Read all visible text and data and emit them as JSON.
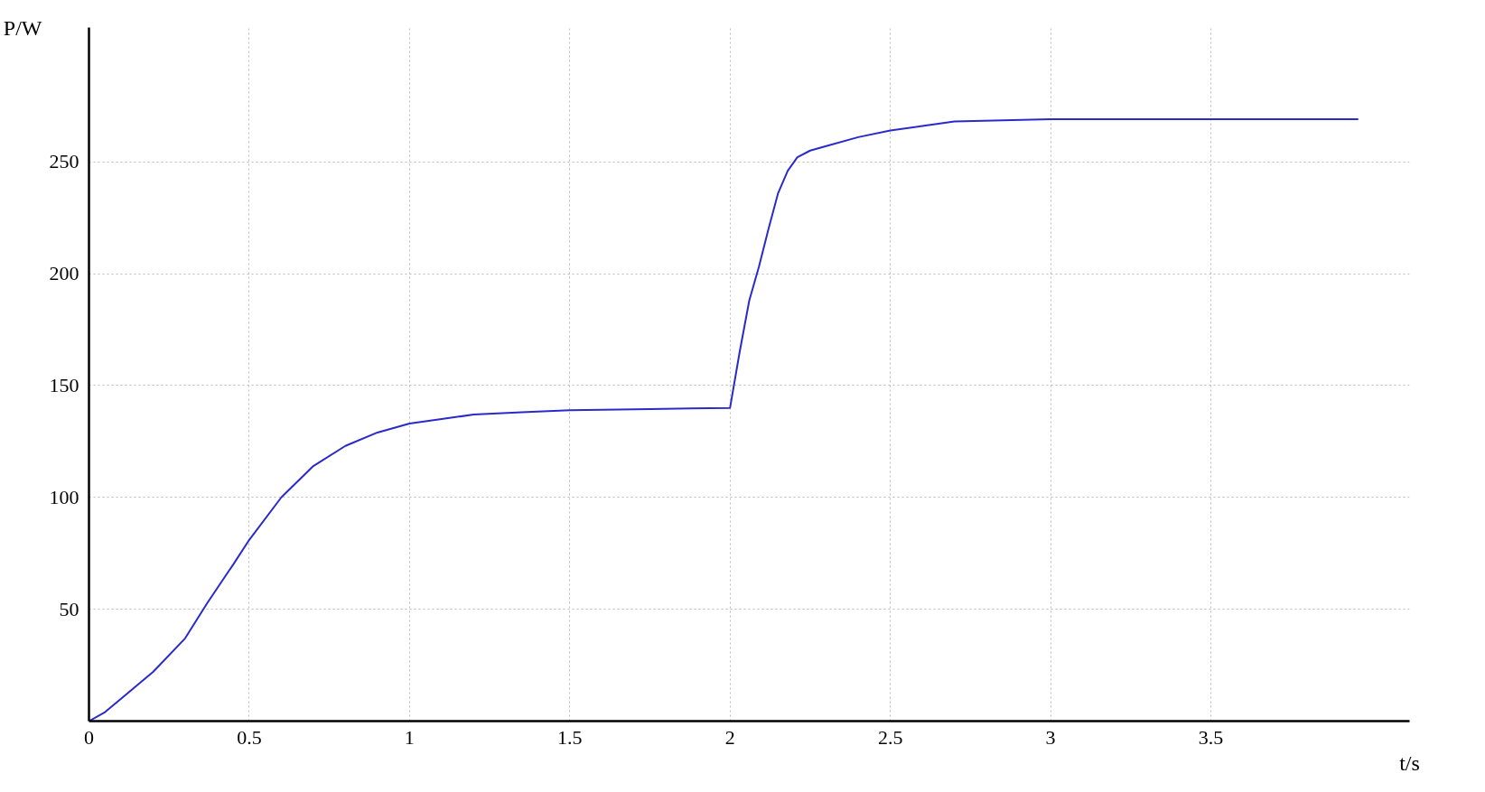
{
  "chart_data": {
    "type": "line",
    "xlabel": "t/s",
    "ylabel": "P/W",
    "x": [
      0,
      0.05,
      0.1,
      0.2,
      0.3,
      0.37,
      0.45,
      0.5,
      0.6,
      0.7,
      0.8,
      0.9,
      1.0,
      1.1,
      1.2,
      1.35,
      1.5,
      1.75,
      2.0,
      2.03,
      2.06,
      2.09,
      2.12,
      2.15,
      2.18,
      2.21,
      2.25,
      2.3,
      2.4,
      2.5,
      2.6,
      2.7,
      2.85,
      3.0,
      3.5,
      3.96
    ],
    "series": [
      {
        "color": "#2a2acc",
        "values": [
          0,
          4,
          10,
          22,
          37,
          53,
          70,
          81,
          100,
          114,
          123,
          129,
          133,
          135,
          137,
          138,
          139,
          139.5,
          140,
          165,
          188,
          203,
          220,
          236,
          246,
          252,
          255,
          257,
          261,
          264,
          266,
          268,
          268.5,
          269,
          269,
          269
        ]
      }
    ],
    "xlim": [
      0,
      4.12
    ],
    "ylim": [
      0,
      310
    ],
    "xticks": [
      0,
      0.5,
      1,
      1.5,
      2,
      2.5,
      3,
      3.5
    ],
    "yticks": [
      50,
      100,
      150,
      200,
      250
    ],
    "grid": true,
    "line_style": "solid"
  }
}
